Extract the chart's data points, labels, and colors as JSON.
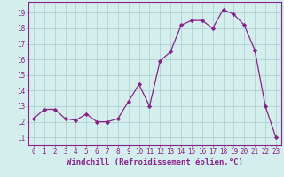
{
  "x": [
    0,
    1,
    2,
    3,
    4,
    5,
    6,
    7,
    8,
    9,
    10,
    11,
    12,
    13,
    14,
    15,
    16,
    17,
    18,
    19,
    20,
    21,
    22,
    23
  ],
  "y": [
    12.2,
    12.8,
    12.8,
    12.2,
    12.1,
    12.5,
    12.0,
    12.0,
    12.2,
    13.3,
    14.4,
    13.0,
    15.9,
    16.5,
    18.2,
    18.5,
    18.5,
    18.0,
    19.2,
    18.9,
    18.2,
    16.6,
    13.0,
    11.0
  ],
  "line_color": "#882288",
  "marker": "D",
  "marker_size": 2.2,
  "bg_color": "#d4eeee",
  "grid_color": "#aacccc",
  "xlabel": "Windchill (Refroidissement éolien,°C)",
  "ylim": [
    10.5,
    19.7
  ],
  "xlim": [
    -0.5,
    23.5
  ],
  "yticks": [
    11,
    12,
    13,
    14,
    15,
    16,
    17,
    18,
    19
  ],
  "xticks": [
    0,
    1,
    2,
    3,
    4,
    5,
    6,
    7,
    8,
    9,
    10,
    11,
    12,
    13,
    14,
    15,
    16,
    17,
    18,
    19,
    20,
    21,
    22,
    23
  ],
  "tick_label_size": 5.5,
  "xlabel_size": 6.5,
  "tick_color": "#882288",
  "label_color": "#882288",
  "spine_color": "#882288"
}
